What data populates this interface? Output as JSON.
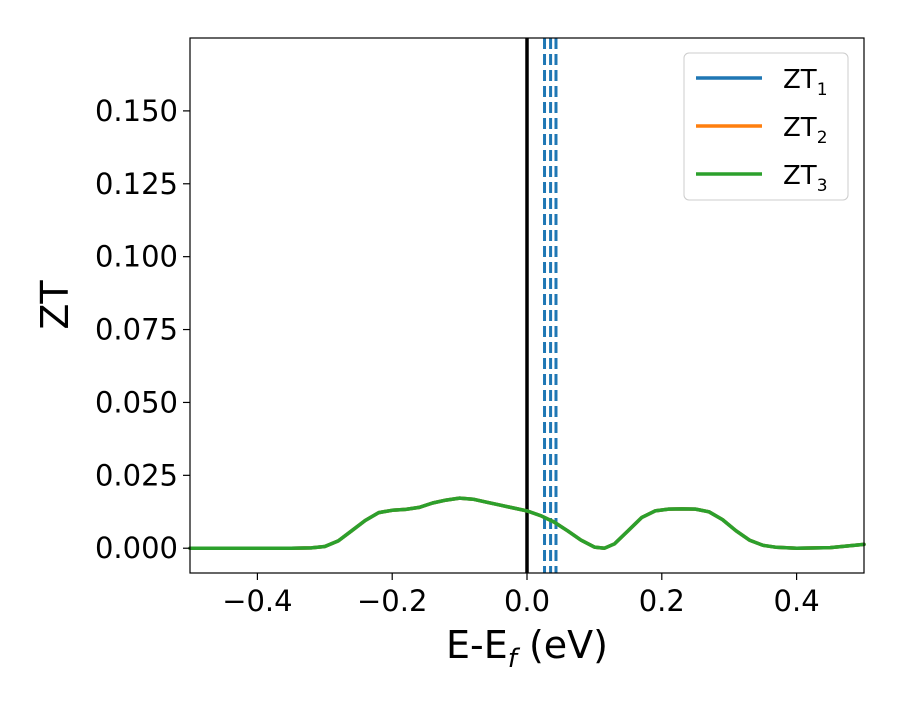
{
  "chart_data": {
    "type": "line",
    "title": "",
    "xlabel": {
      "main": "E-E",
      "sub": "f",
      "suffix": " (eV)"
    },
    "ylabel": "ZT",
    "xlim": [
      -0.5,
      0.5
    ],
    "ylim": [
      -0.0085,
      0.175
    ],
    "xticks": [
      -0.4,
      -0.2,
      0.0,
      0.2,
      0.4
    ],
    "xtick_labels": [
      "−0.4",
      "−0.2",
      "0.0",
      "0.2",
      "0.4"
    ],
    "yticks": [
      0.0,
      0.025,
      0.05,
      0.075,
      0.1,
      0.125,
      0.15
    ],
    "ytick_labels": [
      "0.000",
      "0.025",
      "0.050",
      "0.075",
      "0.100",
      "0.125",
      "0.150"
    ],
    "grid": false,
    "legend_position": "top-right",
    "x": [
      -0.5,
      -0.45,
      -0.4,
      -0.35,
      -0.32,
      -0.3,
      -0.28,
      -0.26,
      -0.24,
      -0.22,
      -0.2,
      -0.18,
      -0.16,
      -0.14,
      -0.12,
      -0.1,
      -0.08,
      -0.06,
      -0.04,
      -0.02,
      0.0,
      0.02,
      0.04,
      0.06,
      0.08,
      0.1,
      0.115,
      0.13,
      0.15,
      0.17,
      0.19,
      0.21,
      0.23,
      0.25,
      0.27,
      0.29,
      0.31,
      0.33,
      0.35,
      0.37,
      0.4,
      0.45,
      0.5
    ],
    "series": [
      {
        "name": "ZT",
        "sub": "1",
        "color": "#1f77b4",
        "values": [
          0.0,
          0.0,
          0.0,
          0.0,
          0.0001,
          0.0006,
          0.0025,
          0.006,
          0.0095,
          0.0122,
          0.013,
          0.0133,
          0.014,
          0.0155,
          0.0165,
          0.0172,
          0.0168,
          0.0158,
          0.0148,
          0.0138,
          0.0128,
          0.0112,
          0.009,
          0.006,
          0.0028,
          0.0004,
          0.0,
          0.0015,
          0.006,
          0.0105,
          0.0128,
          0.0134,
          0.0135,
          0.0134,
          0.0125,
          0.0098,
          0.006,
          0.0028,
          0.001,
          0.0003,
          0.0,
          0.0002,
          0.0013
        ]
      },
      {
        "name": "ZT",
        "sub": "2",
        "color": "#ff7f0e",
        "values": [
          0.0,
          0.0,
          0.0,
          0.0,
          0.0001,
          0.0006,
          0.0025,
          0.006,
          0.0095,
          0.0122,
          0.013,
          0.0133,
          0.014,
          0.0155,
          0.0165,
          0.0172,
          0.0168,
          0.0158,
          0.0148,
          0.0138,
          0.0128,
          0.0112,
          0.009,
          0.006,
          0.0028,
          0.0004,
          0.0,
          0.0015,
          0.006,
          0.0105,
          0.0128,
          0.0134,
          0.0135,
          0.0134,
          0.0125,
          0.0098,
          0.006,
          0.0028,
          0.001,
          0.0003,
          0.0,
          0.0002,
          0.0013
        ]
      },
      {
        "name": "ZT",
        "sub": "3",
        "color": "#2ca02c",
        "values": [
          0.0,
          0.0,
          0.0,
          0.0,
          0.0001,
          0.0006,
          0.0025,
          0.006,
          0.0095,
          0.0122,
          0.013,
          0.0133,
          0.014,
          0.0155,
          0.0165,
          0.0172,
          0.0168,
          0.0158,
          0.0148,
          0.0138,
          0.0128,
          0.0112,
          0.009,
          0.006,
          0.0028,
          0.0004,
          0.0,
          0.0015,
          0.006,
          0.0105,
          0.0128,
          0.0134,
          0.0135,
          0.0134,
          0.0125,
          0.0098,
          0.006,
          0.0028,
          0.001,
          0.0003,
          0.0,
          0.0002,
          0.0013
        ]
      }
    ],
    "vlines": [
      {
        "x": 0.0,
        "style": "solid",
        "color": "#000000"
      },
      {
        "x": 0.026,
        "style": "dashed",
        "color": "#1f77b4"
      },
      {
        "x": 0.035,
        "style": "dashed",
        "color": "#1f77b4"
      },
      {
        "x": 0.043,
        "style": "dashed",
        "color": "#1f77b4"
      }
    ]
  }
}
